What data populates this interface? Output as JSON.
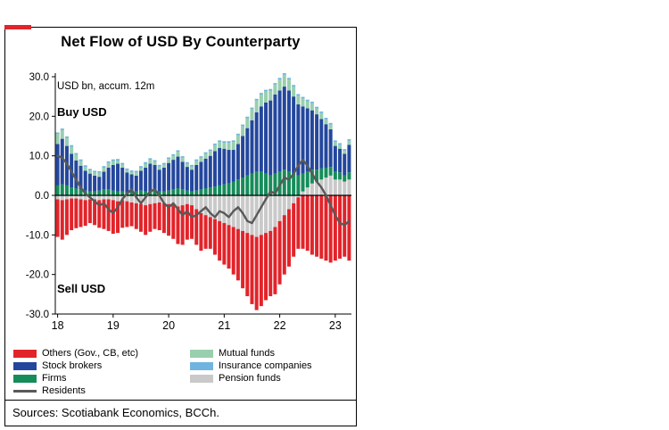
{
  "annotations": {
    "units": "USD bn, accum. 12m",
    "buy": "Buy USD",
    "sell": "Sell USD"
  },
  "source": "Sources: Scotiabank Economics, BCCh.",
  "colors": {
    "accent_red": "#E1242A",
    "border": "#000000"
  },
  "legend": {
    "columns": [
      [
        {
          "label": "Others (Gov., CB, etc)",
          "color": "#E1242A",
          "shape": "box"
        },
        {
          "label": "Stock brokers",
          "color": "#24479D",
          "shape": "box"
        },
        {
          "label": "Firms",
          "color": "#168C5A",
          "shape": "box"
        },
        {
          "label": "Residents",
          "color": "#595959",
          "shape": "line"
        }
      ],
      [
        {
          "label": "Mutual funds",
          "color": "#99CFAD",
          "shape": "box"
        },
        {
          "label": "Insurance companies",
          "color": "#70B5E0",
          "shape": "box"
        },
        {
          "label": "Pension funds",
          "color": "#C9C9C9",
          "shape": "box"
        }
      ]
    ]
  },
  "chart_data": {
    "type": "bar",
    "stacked": true,
    "title": "Net Flow of USD By Counterparty",
    "ylim": [
      -30,
      30
    ],
    "n_months": 64,
    "months_start": "2018-01",
    "yticks": [
      {
        "value": 30,
        "label": "30.0"
      },
      {
        "value": 20,
        "label": "20.0"
      },
      {
        "value": 10,
        "label": "10.0"
      },
      {
        "value": 0,
        "label": "0.0"
      },
      {
        "value": -10,
        "label": "-10.0"
      },
      {
        "value": -20,
        "label": "-20.0"
      },
      {
        "value": -30,
        "label": "-30.0"
      }
    ],
    "xticks": [
      {
        "month_index": 0,
        "label": "18"
      },
      {
        "month_index": 12,
        "label": "19"
      },
      {
        "month_index": 24,
        "label": "20"
      },
      {
        "month_index": 36,
        "label": "21"
      },
      {
        "month_index": 48,
        "label": "22"
      },
      {
        "month_index": 60,
        "label": "23"
      }
    ],
    "series": [
      {
        "name": "Pension funds",
        "color": "#C9C9C9",
        "values": [
          -1.0,
          -1.2,
          -1.0,
          -0.8,
          -0.8,
          -1.0,
          -1.2,
          -1.0,
          -1.0,
          -1.2,
          -1.0,
          -1.0,
          -1.2,
          -1.5,
          -1.2,
          -1.5,
          -1.8,
          -2.0,
          -2.2,
          -2.5,
          -2.2,
          -2.0,
          -1.8,
          -2.0,
          -2.2,
          -2.5,
          -2.8,
          -2.5,
          -2.2,
          -2.5,
          -3.5,
          -4.5,
          -5.0,
          -5.5,
          -6.0,
          -6.5,
          -7.0,
          -7.5,
          -8.0,
          -8.5,
          -9.0,
          -9.5,
          -10.0,
          -10.5,
          -10.0,
          -9.5,
          -9.0,
          -8.0,
          -6.5,
          -5.0,
          -3.5,
          -2.0,
          -0.5,
          1.0,
          2.0,
          3.0,
          3.5,
          4.0,
          4.5,
          5.0,
          4.0,
          4.0,
          3.5,
          4.0
        ]
      },
      {
        "name": "Firms",
        "color": "#168C5A",
        "values": [
          2.5,
          2.8,
          2.5,
          2.0,
          1.8,
          1.5,
          1.2,
          1.0,
          1.0,
          1.2,
          1.5,
          1.5,
          1.2,
          1.0,
          1.0,
          0.8,
          0.8,
          1.0,
          1.2,
          1.0,
          1.0,
          1.2,
          1.0,
          1.0,
          1.2,
          1.5,
          1.8,
          1.5,
          1.2,
          1.0,
          1.2,
          1.5,
          1.8,
          2.0,
          2.2,
          2.5,
          2.8,
          3.0,
          3.5,
          4.0,
          4.5,
          5.0,
          5.5,
          6.0,
          6.0,
          5.5,
          5.0,
          5.5,
          6.0,
          6.5,
          6.0,
          5.5,
          5.0,
          4.5,
          4.0,
          3.5,
          3.0,
          2.8,
          2.5,
          2.2,
          2.0,
          1.8,
          1.5,
          1.8
        ]
      },
      {
        "name": "Stock brokers",
        "color": "#24479D",
        "values": [
          10.5,
          11.5,
          10.0,
          8.5,
          7.0,
          6.0,
          5.0,
          4.5,
          4.0,
          3.5,
          4.5,
          5.5,
          6.5,
          7.0,
          6.0,
          5.0,
          4.5,
          4.0,
          5.0,
          6.0,
          7.0,
          6.5,
          5.5,
          6.0,
          7.0,
          7.5,
          8.0,
          7.0,
          6.0,
          5.5,
          6.5,
          7.0,
          7.5,
          8.0,
          9.0,
          9.5,
          9.0,
          8.5,
          8.0,
          9.0,
          10.5,
          12.0,
          13.5,
          15.0,
          16.5,
          18.0,
          19.0,
          20.0,
          20.5,
          21.0,
          20.5,
          19.5,
          18.0,
          17.0,
          16.0,
          15.0,
          14.0,
          12.5,
          11.0,
          9.5,
          6.5,
          6.0,
          5.5,
          7.0
        ]
      },
      {
        "name": "Mutual funds",
        "color": "#99CFAD",
        "values": [
          2.5,
          2.2,
          2.0,
          1.8,
          1.5,
          1.2,
          1.0,
          0.8,
          0.8,
          1.0,
          1.0,
          1.2,
          1.0,
          0.8,
          0.8,
          0.6,
          0.6,
          0.8,
          0.8,
          1.0,
          1.0,
          0.8,
          0.8,
          0.8,
          1.0,
          1.0,
          1.2,
          1.0,
          0.8,
          0.8,
          1.0,
          1.0,
          1.2,
          1.2,
          1.5,
          1.5,
          1.5,
          1.8,
          2.0,
          2.2,
          2.5,
          2.5,
          2.8,
          3.0,
          3.0,
          2.8,
          2.5,
          2.5,
          2.8,
          3.0,
          2.8,
          2.5,
          2.2,
          2.0,
          1.8,
          1.8,
          1.5,
          1.5,
          1.2,
          1.2,
          1.0,
          1.0,
          0.8,
          1.0
        ]
      },
      {
        "name": "Insurance companies",
        "color": "#70B5E0",
        "values": [
          0.4,
          0.4,
          0.4,
          0.4,
          0.4,
          0.4,
          0.4,
          0.4,
          0.4,
          0.4,
          0.4,
          0.4,
          0.4,
          0.4,
          0.4,
          0.4,
          0.4,
          0.4,
          0.4,
          0.4,
          0.4,
          0.4,
          0.4,
          0.4,
          0.4,
          0.4,
          0.4,
          0.4,
          0.4,
          0.4,
          0.4,
          0.4,
          0.4,
          0.4,
          0.4,
          0.4,
          0.4,
          0.4,
          0.4,
          0.4,
          0.4,
          0.4,
          0.4,
          0.4,
          0.4,
          0.4,
          0.4,
          0.4,
          0.4,
          0.4,
          0.4,
          0.4,
          0.4,
          0.4,
          0.4,
          0.4,
          0.4,
          0.4,
          0.4,
          0.4,
          0.4,
          0.4,
          0.4,
          0.4
        ]
      },
      {
        "name": "Others (Gov., CB, etc)",
        "color": "#E1242A",
        "values": [
          -9.5,
          -10.0,
          -9.0,
          -8.0,
          -7.5,
          -7.0,
          -6.5,
          -6.0,
          -6.5,
          -7.0,
          -7.5,
          -8.0,
          -8.5,
          -8.0,
          -7.0,
          -6.5,
          -6.0,
          -6.5,
          -7.0,
          -7.5,
          -7.0,
          -6.5,
          -7.0,
          -7.5,
          -8.0,
          -8.5,
          -9.5,
          -10.0,
          -9.0,
          -8.5,
          -9.0,
          -9.5,
          -8.5,
          -8.0,
          -9.0,
          -10.0,
          -10.5,
          -11.0,
          -12.0,
          -13.0,
          -14.5,
          -16.0,
          -17.5,
          -18.5,
          -18.0,
          -17.0,
          -16.5,
          -17.0,
          -16.0,
          -15.0,
          -14.5,
          -13.5,
          -13.0,
          -13.5,
          -14.0,
          -15.0,
          -15.5,
          -16.0,
          -16.5,
          -17.0,
          -16.5,
          -16.0,
          -15.5,
          -16.5
        ]
      }
    ],
    "line_series": {
      "name": "Residents",
      "color": "#595959",
      "values": [
        10.0,
        9.5,
        8.0,
        6.0,
        4.0,
        2.0,
        0.5,
        -0.5,
        -1.5,
        -2.5,
        -2.0,
        -3.5,
        -4.5,
        -3.0,
        -1.0,
        0.5,
        1.5,
        -0.5,
        -2.0,
        -0.5,
        1.0,
        1.5,
        0.0,
        -2.0,
        -3.0,
        -2.0,
        -3.5,
        -5.0,
        -4.0,
        -5.5,
        -5.0,
        -4.0,
        -3.0,
        -4.5,
        -5.5,
        -4.0,
        -4.5,
        -5.5,
        -4.0,
        -3.0,
        -4.5,
        -6.5,
        -7.0,
        -5.0,
        -3.0,
        -1.0,
        1.0,
        0.5,
        2.5,
        4.5,
        4.0,
        5.5,
        7.5,
        9.0,
        7.5,
        5.5,
        3.5,
        2.0,
        0.0,
        -2.5,
        -5.0,
        -7.0,
        -7.5,
        -6.5
      ]
    }
  }
}
